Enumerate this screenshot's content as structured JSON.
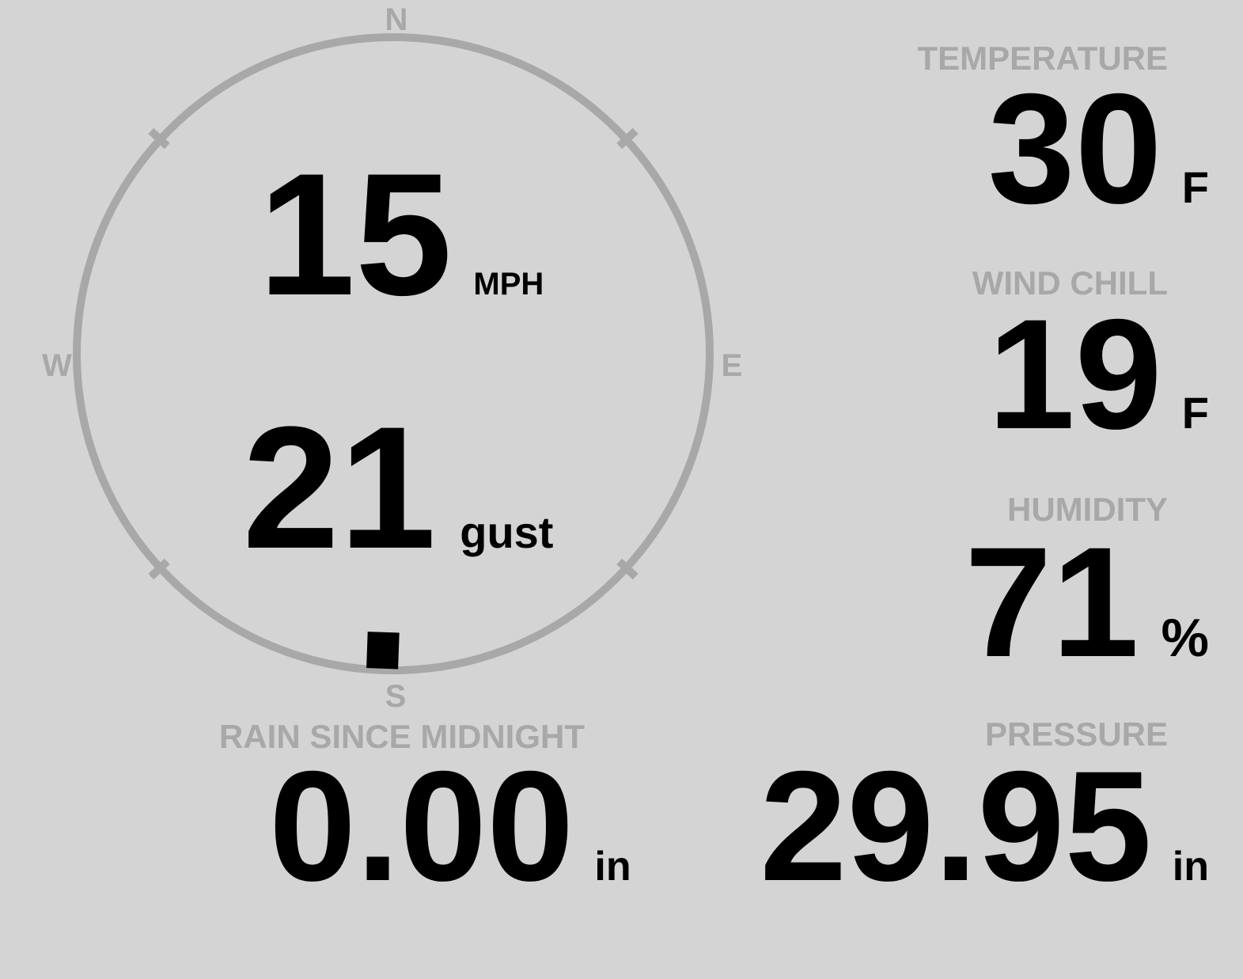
{
  "theme": {
    "background_color": "#d4d4d4",
    "muted_color": "#a8a8a8",
    "value_color": "#000000"
  },
  "compass": {
    "direction_labels": {
      "north": "N",
      "east": "E",
      "south": "S",
      "west": "W"
    },
    "wind_speed": {
      "value": "15",
      "unit": "MPH"
    },
    "wind_gust": {
      "value": "21",
      "unit": "gust"
    },
    "wind_direction_degrees": 182
  },
  "metrics": {
    "temperature": {
      "label": "TEMPERATURE",
      "value": "30",
      "unit": "F"
    },
    "wind_chill": {
      "label": "WIND CHILL",
      "value": "19",
      "unit": "F"
    },
    "humidity": {
      "label": "HUMIDITY",
      "value": "71",
      "unit": "%"
    },
    "rain_since_midnight": {
      "label": "RAIN SINCE MIDNIGHT",
      "value": "0.00",
      "unit": "in"
    },
    "pressure": {
      "label": "PRESSURE",
      "value": "29.95",
      "unit": "in"
    }
  }
}
